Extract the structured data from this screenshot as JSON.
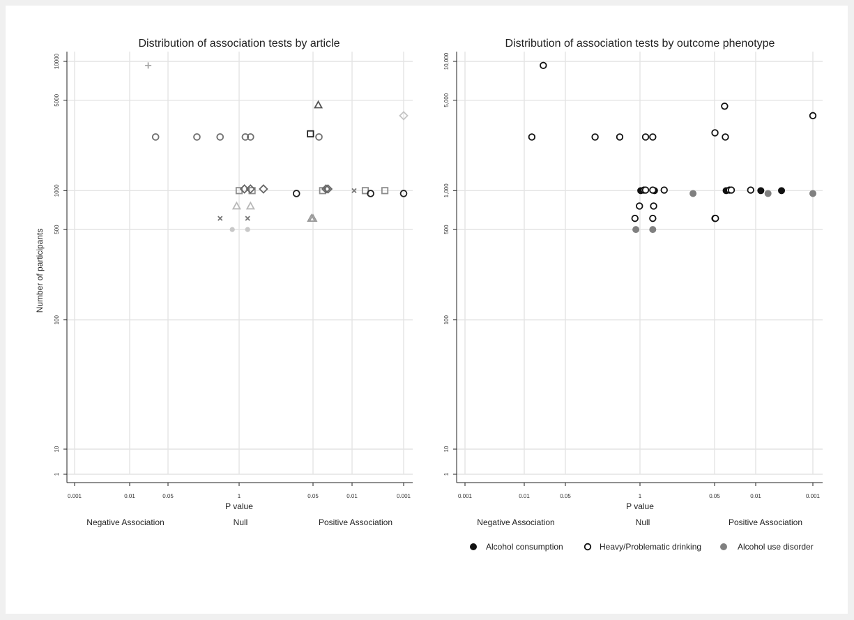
{
  "figure": {
    "background": "#f0f0f0",
    "panel_background": "#ffffff",
    "grid_color": "#e4e4e4"
  },
  "chart_data": [
    {
      "type": "scatter",
      "title": "Distribution of association tests by article",
      "xlabel": "P value",
      "ylabel": "Number of participants",
      "x_scale": "signed p value: negative association on left (0.001 → 1), positive association on right (1 → 0.001)",
      "xticks": [
        "0.001",
        "0.01",
        "0.05",
        "1",
        "0.05",
        "0.01",
        "0.001"
      ],
      "yticks": [
        "1",
        "10",
        "100",
        "500",
        "1000",
        "5000",
        "10000"
      ],
      "y_scale": "log",
      "ylim": [
        1,
        10000
      ],
      "grid": true,
      "region_labels": [
        "Negative Association",
        "Null",
        "Positive Association"
      ],
      "legend": null,
      "points": [
        {
          "x": "0.022 (negative)",
          "y": 9300,
          "marker": "plus",
          "color": "#a6a6a6"
        },
        {
          "x": "0.03 (negative)",
          "y": 2600,
          "marker": "circle",
          "color": "#707070"
        },
        {
          "x": "0.17 (negative)",
          "y": 2600,
          "marker": "circle",
          "color": "#707070"
        },
        {
          "x": "0.45 (negative)",
          "y": 2600,
          "marker": "circle",
          "color": "#707070"
        },
        {
          "x": "0.77 (positive)",
          "y": 2600,
          "marker": "circle",
          "color": "#707070"
        },
        {
          "x": "0.62 (positive)",
          "y": 2600,
          "marker": "circle",
          "color": "#707070"
        },
        {
          "x": "0.035 (positive)",
          "y": 2600,
          "marker": "circle",
          "color": "#707070"
        },
        {
          "x": "0.05 (positive)",
          "y": 2750,
          "marker": "square",
          "color": "#222222"
        },
        {
          "x": "0.036 (positive)",
          "y": 4600,
          "marker": "triangle",
          "color": "#555555"
        },
        {
          "x": "0.001 (positive)",
          "y": 3800,
          "marker": "diamond",
          "color": "#c4c4c4"
        },
        {
          "x": "1.0 (positive)",
          "y": 1000,
          "marker": "square",
          "color": "#8c8c8c"
        },
        {
          "x": "0.58 (positive)",
          "y": 1000,
          "marker": "square",
          "color": "#8c8c8c"
        },
        {
          "x": "0.03 (positive)",
          "y": 1000,
          "marker": "square",
          "color": "#8c8c8c"
        },
        {
          "x": "0.005 (positive)",
          "y": 1000,
          "marker": "square",
          "color": "#8c8c8c"
        },
        {
          "x": "0.0022 (positive)",
          "y": 1000,
          "marker": "square",
          "color": "#8c8c8c"
        },
        {
          "x": "0.8 (positive)",
          "y": 1030,
          "marker": "diamond",
          "color": "#666666"
        },
        {
          "x": "0.62 (positive)",
          "y": 1030,
          "marker": "diamond",
          "color": "#666666"
        },
        {
          "x": "0.36 (positive)",
          "y": 1030,
          "marker": "diamond",
          "color": "#666666"
        },
        {
          "x": "0.026 (positive)",
          "y": 1030,
          "marker": "diamond",
          "color": "#666666"
        },
        {
          "x": "0.024 (positive)",
          "y": 1030,
          "marker": "diamond",
          "color": "#666666"
        },
        {
          "x": "0.09 (positive)",
          "y": 950,
          "marker": "circle",
          "color": "#222222"
        },
        {
          "x": "0.004 (positive)",
          "y": 950,
          "marker": "circle",
          "color": "#222222"
        },
        {
          "x": "0.001 (positive)",
          "y": 950,
          "marker": "circle",
          "color": "#222222"
        },
        {
          "x": "0.9 (negative)",
          "y": 760,
          "marker": "triangle",
          "color": "#b8b8b8"
        },
        {
          "x": "0.62 (positive)",
          "y": 760,
          "marker": "triangle",
          "color": "#b8b8b8"
        },
        {
          "x": "0.048 (positive)",
          "y": 610,
          "marker": "triangle",
          "color": "#999999"
        },
        {
          "x": "0.045 (positive)",
          "y": 610,
          "marker": "triangle",
          "color": "#999999"
        },
        {
          "x": "0.45 (negative)",
          "y": 610,
          "marker": "x",
          "color": "#777777"
        },
        {
          "x": "0.7 (positive)",
          "y": 610,
          "marker": "x",
          "color": "#777777"
        },
        {
          "x": "0.008 (positive)",
          "y": 1000,
          "marker": "x",
          "color": "#777777"
        },
        {
          "x": "0.75 (negative)",
          "y": 500,
          "marker": "dot",
          "color": "#c8c8c8"
        },
        {
          "x": "0.7 (positive)",
          "y": 500,
          "marker": "dot",
          "color": "#c8c8c8"
        }
      ]
    },
    {
      "type": "scatter",
      "title": "Distribution of association tests by outcome phenotype",
      "xlabel": "P value",
      "ylabel": "",
      "x_scale": "signed p value: negative association on left (0.001 → 1), positive association on right (1 → 0.001)",
      "xticks": [
        "0.001",
        "0.01",
        "0.05",
        "1",
        "0.05",
        "0.01",
        "0.001"
      ],
      "yticks": [
        "1",
        "10",
        "100",
        "500",
        "1,000",
        "5,000",
        "10,000"
      ],
      "y_scale": "log",
      "ylim": [
        1,
        10000
      ],
      "grid": true,
      "region_labels": [
        "Negative Association",
        "Null",
        "Positive Association"
      ],
      "legend": {
        "position": "bottom",
        "entries": [
          {
            "label": "Alcohol consumption",
            "marker": "filled",
            "color": "#111111"
          },
          {
            "label": "Heavy/Problematic drinking",
            "marker": "hollow",
            "color": "#111111"
          },
          {
            "label": "Alcohol use disorder",
            "marker": "filled",
            "color": "#808080"
          }
        ]
      },
      "points": [
        {
          "x": "0.022 (negative)",
          "y": 9300,
          "series": "Heavy/Problematic drinking"
        },
        {
          "x": "0.014 (negative)",
          "y": 2600,
          "series": "Heavy/Problematic drinking"
        },
        {
          "x": "0.17 (negative)",
          "y": 2600,
          "series": "Heavy/Problematic drinking"
        },
        {
          "x": "0.45 (negative)",
          "y": 2600,
          "series": "Heavy/Problematic drinking"
        },
        {
          "x": "0.8 (positive)",
          "y": 2600,
          "series": "Heavy/Problematic drinking"
        },
        {
          "x": "0.6 (positive)",
          "y": 2600,
          "series": "Heavy/Problematic drinking"
        },
        {
          "x": "0.05 (positive)",
          "y": 2800,
          "series": "Heavy/Problematic drinking"
        },
        {
          "x": "0.033 (positive)",
          "y": 2600,
          "series": "Heavy/Problematic drinking"
        },
        {
          "x": "0.034 (positive)",
          "y": 4500,
          "series": "Heavy/Problematic drinking"
        },
        {
          "x": "0.001 (positive)",
          "y": 3800,
          "series": "Heavy/Problematic drinking"
        },
        {
          "x": "0.97 (positive)",
          "y": 1000,
          "series": "Alcohol consumption"
        },
        {
          "x": "0.56 (positive)",
          "y": 1000,
          "series": "Alcohol consumption"
        },
        {
          "x": "0.032 (positive)",
          "y": 1000,
          "series": "Alcohol consumption"
        },
        {
          "x": "0.008 (positive)",
          "y": 1000,
          "series": "Alcohol consumption"
        },
        {
          "x": "0.0035 (positive)",
          "y": 1000,
          "series": "Alcohol consumption"
        },
        {
          "x": "0.85 (positive)",
          "y": 1010,
          "series": "Heavy/Problematic drinking"
        },
        {
          "x": "0.8 (positive)",
          "y": 1010,
          "series": "Heavy/Problematic drinking"
        },
        {
          "x": "0.6 (positive)",
          "y": 1010,
          "series": "Heavy/Problematic drinking"
        },
        {
          "x": "0.38 (positive)",
          "y": 1010,
          "series": "Heavy/Problematic drinking"
        },
        {
          "x": "0.028 (positive)",
          "y": 1010,
          "series": "Heavy/Problematic drinking"
        },
        {
          "x": "0.026 (positive)",
          "y": 1010,
          "series": "Heavy/Problematic drinking"
        },
        {
          "x": "0.012 (positive)",
          "y": 1010,
          "series": "Heavy/Problematic drinking"
        },
        {
          "x": "0.12 (positive)",
          "y": 950,
          "series": "Alcohol use disorder"
        },
        {
          "x": "0.006 (positive)",
          "y": 950,
          "series": "Alcohol use disorder"
        },
        {
          "x": "0.001 (positive)",
          "y": 950,
          "series": "Alcohol use disorder"
        },
        {
          "x": "0.98 (negative)",
          "y": 760,
          "series": "Heavy/Problematic drinking"
        },
        {
          "x": "0.58 (positive)",
          "y": 760,
          "series": "Heavy/Problematic drinking"
        },
        {
          "x": "0.82 (negative)",
          "y": 610,
          "series": "Heavy/Problematic drinking"
        },
        {
          "x": "0.6 (positive)",
          "y": 610,
          "series": "Heavy/Problematic drinking"
        },
        {
          "x": "0.05 (positive)",
          "y": 610,
          "series": "Heavy/Problematic drinking"
        },
        {
          "x": "0.049 (positive)",
          "y": 610,
          "series": "Heavy/Problematic drinking"
        },
        {
          "x": "0.85 (negative)",
          "y": 500,
          "series": "Alcohol use disorder"
        },
        {
          "x": "0.6 (positive)",
          "y": 500,
          "series": "Alcohol use disorder"
        }
      ]
    }
  ]
}
